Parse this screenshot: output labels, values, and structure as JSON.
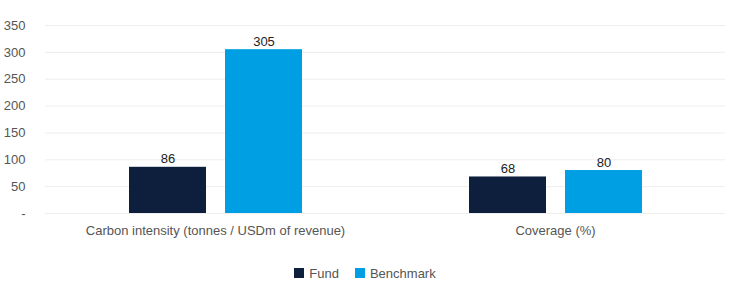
{
  "chart_data": {
    "type": "bar",
    "categories": [
      "Carbon intensity (tonnes / USDm of revenue)",
      "Coverage (%)"
    ],
    "series": [
      {
        "name": "Fund",
        "color": "#0d1f3c",
        "values": [
          86,
          68
        ]
      },
      {
        "name": "Benchmark",
        "color": "#009fe3",
        "values": [
          305,
          80
        ]
      }
    ],
    "ylim": [
      0,
      350
    ],
    "yticks": [
      {
        "value": 0,
        "label": "-"
      },
      50,
      100,
      150,
      200,
      250,
      300,
      350
    ],
    "grid": true,
    "data_labels": true,
    "legend": "bottom"
  }
}
